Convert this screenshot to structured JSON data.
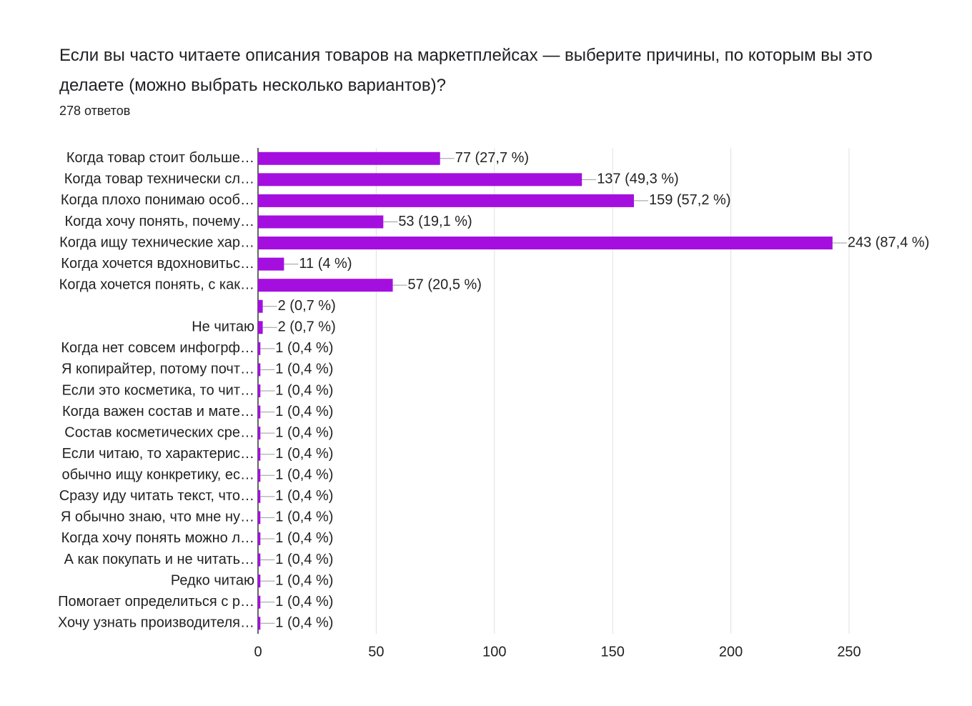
{
  "chart_data": {
    "type": "bar",
    "orientation": "horizontal",
    "title": "Если вы часто читаете описания товаров на маркетплейсах — выберите причины, по которым вы это делаете (можно выбрать несколько вариантов)?",
    "subtitle": "278 ответов",
    "categories": [
      "Когда товар стоит больше…",
      "Когда товар технически сл…",
      "Когда плохо понимаю особ…",
      "Когда хочу понять, почему…",
      "Когда ищу технические хар…",
      "Когда хочется вдохновитьс…",
      "Когда хочется понять, с как…",
      null,
      "Не читаю",
      "Когда нет совсем инфогрф…",
      "Я копирайтер, потому почт…",
      "Если это косметика, то чит…",
      "Когда важен состав и мате…",
      "Состав косметических сре…",
      "Если читаю, то характерис…",
      "обычно ищу конкретику, ес…",
      "Сразу иду читать текст, что…",
      "Я обычно знаю, что мне ну…",
      "Когда хочу понять можно л…",
      "А как покупать и не читать…",
      "Редко читаю",
      "Помогает определиться с р…",
      "Хочу узнать производителя…"
    ],
    "values": [
      77,
      137,
      159,
      53,
      243,
      11,
      57,
      2,
      2,
      1,
      1,
      1,
      1,
      1,
      1,
      1,
      1,
      1,
      1,
      1,
      1,
      1,
      1
    ],
    "value_labels": [
      "77 (27,7 %)",
      "137 (49,3 %)",
      "159 (57,2 %)",
      "53 (19,1 %)",
      "243 (87,4 %)",
      "11 (4 %)",
      "57 (20,5 %)",
      "2 (0,7 %)",
      "2 (0,7 %)",
      "1 (0,4 %)",
      "1 (0,4 %)",
      "1 (0,4 %)",
      "1 (0,4 %)",
      "1 (0,4 %)",
      "1 (0,4 %)",
      "1 (0,4 %)",
      "1 (0,4 %)",
      "1 (0,4 %)",
      "1 (0,4 %)",
      "1 (0,4 %)",
      "1 (0,4 %)",
      "1 (0,4 %)",
      "1 (0,4 %)"
    ],
    "color": "#a40fe0",
    "xlim": [
      0,
      250
    ],
    "xticks": [
      0,
      50,
      100,
      150,
      200,
      250
    ],
    "grid": true
  }
}
